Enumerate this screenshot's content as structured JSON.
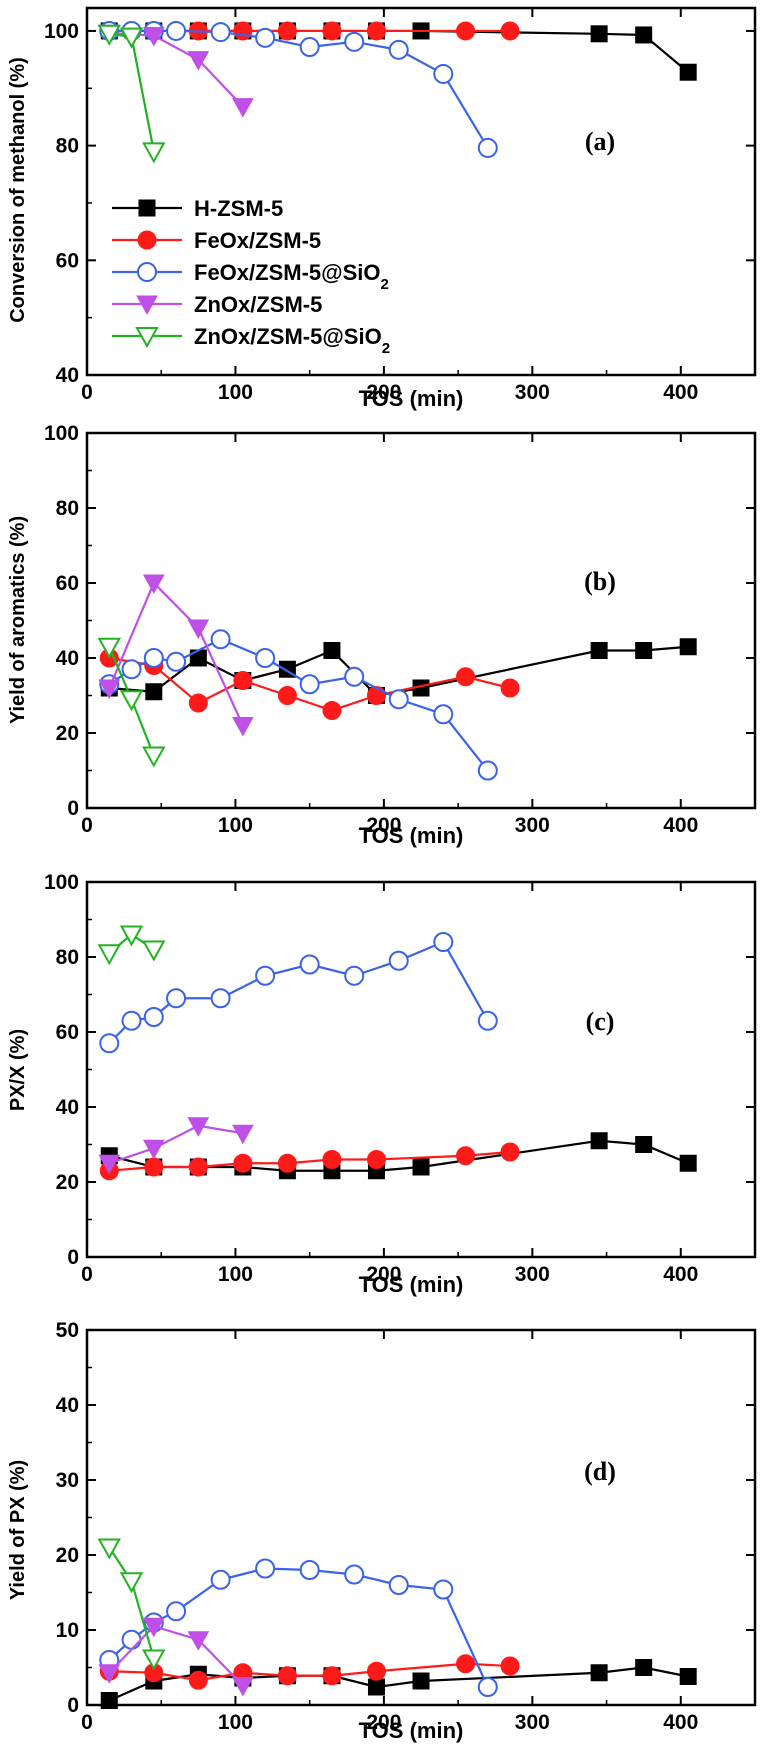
{
  "figure": {
    "series_styles": [
      {
        "name": "H-ZSM-5",
        "color": "#000000",
        "marker": "square-filled"
      },
      {
        "name": "FeOx/ZSM-5",
        "color": "#ff1a1a",
        "marker": "circle-filled"
      },
      {
        "name": "FeOx/ZSM-5@SiO2",
        "color": "#3a63ea",
        "marker": "circle-open"
      },
      {
        "name": "ZnOx/ZSM-5",
        "color": "#bf4fe6",
        "marker": "triangle-down-filled"
      },
      {
        "name": "ZnOx/ZSM-5@SiO2",
        "color": "#22b322",
        "marker": "triangle-down-open"
      }
    ]
  },
  "chart_data": [
    {
      "type": "line",
      "panel_label": "(a)",
      "title": "",
      "xlabel": "TOS (min)",
      "ylabel": "Conversion of methanol (%)",
      "xlim": [
        0,
        450
      ],
      "ylim": [
        40,
        104
      ],
      "xticks": [
        0,
        100,
        200,
        300,
        400
      ],
      "yticks": [
        40,
        60,
        80,
        100
      ],
      "grid": false,
      "legend": {
        "placement": "lower-left",
        "entries": [
          "H-ZSM-5",
          "FeOx/ZSM-5",
          "FeOx/ZSM-5@SiO",
          "ZnOx/ZSM-5",
          "ZnOx/ZSM-5@SiO"
        ],
        "subscripts": [
          "",
          "",
          "2",
          "",
          "2"
        ]
      },
      "series": [
        {
          "name": "H-ZSM-5",
          "x": [
            15,
            45,
            75,
            105,
            135,
            165,
            195,
            225,
            345,
            375,
            405
          ],
          "y": [
            100,
            100,
            100,
            100,
            100,
            100,
            100,
            100,
            99.5,
            99.3,
            92.8
          ]
        },
        {
          "name": "FeOx/ZSM-5",
          "x": [
            15,
            45,
            75,
            105,
            135,
            165,
            195,
            255,
            285
          ],
          "y": [
            100,
            100,
            100,
            100,
            100,
            100,
            100,
            100,
            100
          ]
        },
        {
          "name": "FeOx/ZSM-5@SiO2",
          "x": [
            15,
            30,
            45,
            60,
            90,
            120,
            150,
            180,
            210,
            240,
            270
          ],
          "y": [
            100,
            100,
            100,
            100,
            99.8,
            98.8,
            97.2,
            98.1,
            96.7,
            92.5,
            79.6
          ]
        },
        {
          "name": "ZnOx/ZSM-5",
          "x": [
            15,
            45,
            75,
            105
          ],
          "y": [
            99.6,
            99.2,
            95.0,
            86.8
          ]
        },
        {
          "name": "ZnOx/ZSM-5@SiO2",
          "x": [
            15,
            30,
            45
          ],
          "y": [
            99.5,
            99.0,
            79.0
          ]
        }
      ]
    },
    {
      "type": "line",
      "panel_label": "(b)",
      "title": "",
      "xlabel": "TOS (min)",
      "ylabel": "Yield of aromatics (%)",
      "xlim": [
        0,
        450
      ],
      "ylim": [
        0,
        100
      ],
      "xticks": [
        0,
        100,
        200,
        300,
        400
      ],
      "yticks": [
        0,
        20,
        40,
        60,
        80,
        100
      ],
      "grid": false,
      "series": [
        {
          "name": "H-ZSM-5",
          "x": [
            15,
            45,
            75,
            105,
            135,
            165,
            195,
            225,
            345,
            375,
            405
          ],
          "y": [
            32,
            31,
            40,
            34,
            37,
            42,
            30,
            32,
            42,
            42,
            43
          ]
        },
        {
          "name": "FeOx/ZSM-5",
          "x": [
            15,
            45,
            75,
            105,
            135,
            165,
            195,
            255,
            285
          ],
          "y": [
            40,
            38,
            28,
            34,
            30,
            26,
            30,
            35,
            32
          ]
        },
        {
          "name": "FeOx/ZSM-5@SiO2",
          "x": [
            15,
            30,
            45,
            60,
            90,
            120,
            150,
            180,
            210,
            240,
            270
          ],
          "y": [
            33,
            37,
            40,
            39,
            45,
            40,
            33,
            35,
            29,
            25,
            10
          ]
        },
        {
          "name": "ZnOx/ZSM-5",
          "x": [
            15,
            45,
            75,
            105
          ],
          "y": [
            32,
            60,
            48,
            22
          ]
        },
        {
          "name": "ZnOx/ZSM-5@SiO2",
          "x": [
            15,
            30,
            45
          ],
          "y": [
            43,
            29,
            14
          ]
        }
      ]
    },
    {
      "type": "line",
      "panel_label": "(c)",
      "title": "",
      "xlabel": "TOS (min)",
      "ylabel": "PX/X (%)",
      "xlim": [
        0,
        450
      ],
      "ylim": [
        0,
        100
      ],
      "xticks": [
        0,
        100,
        200,
        300,
        400
      ],
      "yticks": [
        0,
        20,
        40,
        60,
        80,
        100
      ],
      "grid": false,
      "series": [
        {
          "name": "H-ZSM-5",
          "x": [
            15,
            45,
            75,
            105,
            135,
            165,
            195,
            225,
            345,
            375,
            405
          ],
          "y": [
            27,
            24,
            24,
            24,
            23,
            23,
            23,
            24,
            31,
            30,
            25
          ]
        },
        {
          "name": "FeOx/ZSM-5",
          "x": [
            15,
            45,
            75,
            105,
            135,
            165,
            195,
            255,
            285
          ],
          "y": [
            23,
            24,
            24,
            25,
            25,
            26,
            26,
            27,
            28
          ]
        },
        {
          "name": "FeOx/ZSM-5@SiO2",
          "x": [
            15,
            30,
            45,
            60,
            90,
            120,
            150,
            180,
            210,
            240,
            270
          ],
          "y": [
            57,
            63,
            64,
            69,
            69,
            75,
            78,
            75,
            79,
            84,
            63
          ]
        },
        {
          "name": "ZnOx/ZSM-5",
          "x": [
            15,
            45,
            75,
            105
          ],
          "y": [
            25,
            29,
            35,
            33
          ]
        },
        {
          "name": "ZnOx/ZSM-5@SiO2",
          "x": [
            15,
            30,
            45
          ],
          "y": [
            81,
            86,
            82
          ]
        }
      ]
    },
    {
      "type": "line",
      "panel_label": "(d)",
      "title": "",
      "xlabel": "TOS (min)",
      "ylabel": "Yield of PX (%)",
      "xlim": [
        0,
        450
      ],
      "ylim": [
        0,
        50
      ],
      "xticks": [
        0,
        100,
        200,
        300,
        400
      ],
      "yticks": [
        0,
        10,
        20,
        30,
        40,
        50
      ],
      "grid": false,
      "series": [
        {
          "name": "H-ZSM-5",
          "x": [
            15,
            45,
            75,
            105,
            135,
            165,
            195,
            225,
            345,
            375,
            405
          ],
          "y": [
            0.6,
            3.2,
            4.1,
            3.6,
            3.9,
            3.9,
            2.4,
            3.2,
            4.3,
            5.0,
            3.8
          ]
        },
        {
          "name": "FeOx/ZSM-5",
          "x": [
            15,
            45,
            75,
            105,
            135,
            165,
            195,
            255,
            285
          ],
          "y": [
            4.5,
            4.3,
            3.3,
            4.3,
            3.9,
            3.9,
            4.5,
            5.5,
            5.2
          ]
        },
        {
          "name": "FeOx/ZSM-5@SiO2",
          "x": [
            15,
            30,
            45,
            60,
            90,
            120,
            150,
            180,
            210,
            240,
            270
          ],
          "y": [
            6.0,
            8.7,
            11.0,
            12.5,
            16.7,
            18.2,
            18.0,
            17.4,
            16.0,
            15.4,
            2.4
          ]
        },
        {
          "name": "ZnOx/ZSM-5",
          "x": [
            15,
            45,
            75,
            105
          ],
          "y": [
            4.3,
            10.5,
            8.7,
            2.6
          ]
        },
        {
          "name": "ZnOx/ZSM-5@SiO2",
          "x": [
            15,
            30,
            45
          ],
          "y": [
            21.0,
            16.5,
            6.2
          ]
        }
      ]
    }
  ]
}
